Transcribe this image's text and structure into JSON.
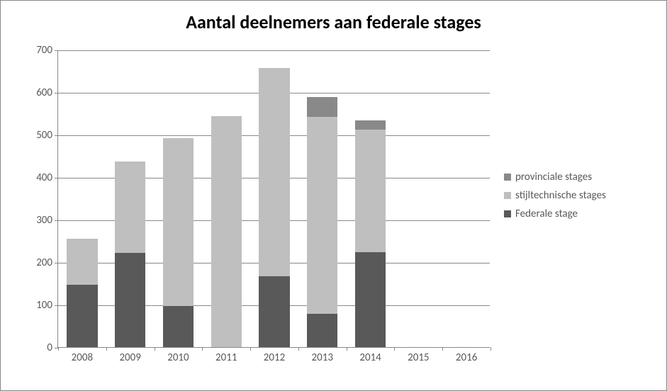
{
  "chart": {
    "type": "stacked-bar",
    "title": "Aantal deelnemers aan federale stages",
    "title_fontsize": 26,
    "title_color": "#000000",
    "background_color": "#ffffff",
    "border_color": "#888888",
    "axis_line_color": "#888888",
    "grid_color": "#888888",
    "tick_label_color": "#595959",
    "tick_label_fontsize": 15,
    "categories": [
      "2008",
      "2009",
      "2010",
      "2011",
      "2012",
      "2013",
      "2014",
      "2015",
      "2016"
    ],
    "ylim": [
      0,
      700
    ],
    "ytick_step": 100,
    "yticks": [
      0,
      100,
      200,
      300,
      400,
      500,
      600,
      700
    ],
    "series": [
      {
        "name": "Federale stage",
        "color": "#595959",
        "values": [
          147,
          222,
          97,
          0,
          167,
          78,
          224,
          0,
          0
        ]
      },
      {
        "name": "stijltechnische stages",
        "color": "#bfbfbf",
        "values": [
          108,
          214,
          394,
          544,
          489,
          464,
          288,
          0,
          0
        ]
      },
      {
        "name": "provinciale stages",
        "color": "#898989",
        "values": [
          0,
          0,
          0,
          0,
          0,
          47,
          22,
          0,
          0
        ]
      }
    ],
    "legend_order": [
      "provinciale stages",
      "stijltechnische stages",
      "Federale stage"
    ],
    "legend_fontsize": 15,
    "bar_width_ratio": 0.64
  }
}
